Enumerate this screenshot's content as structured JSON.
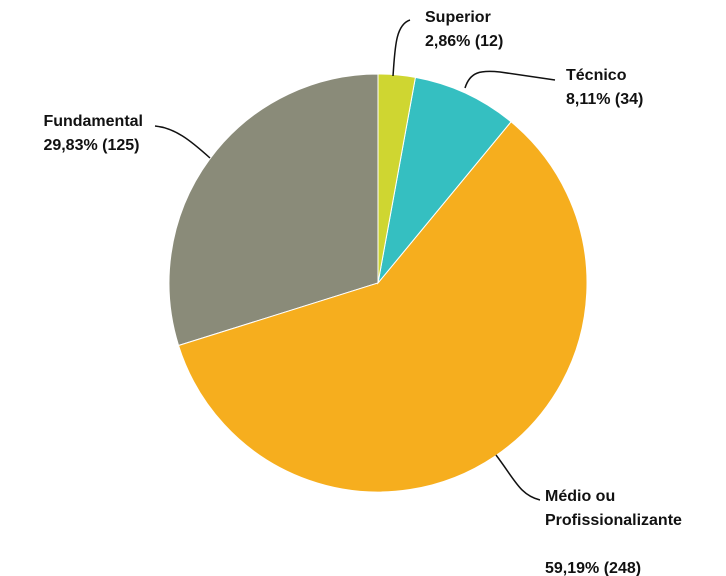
{
  "chart_data": {
    "type": "pie",
    "categories": [
      "Superior",
      "Técnico",
      "Médio ou Profissionalizante",
      "Fundamental"
    ],
    "values": [
      12,
      34,
      248,
      125
    ],
    "value_labels": [
      "2,86% (12)",
      "8,11% (34)",
      "59,19% (248)",
      "29,83% (125)"
    ],
    "colors": [
      "#cfd631",
      "#35bfc1",
      "#f6ae1e",
      "#8a8b79"
    ]
  }
}
